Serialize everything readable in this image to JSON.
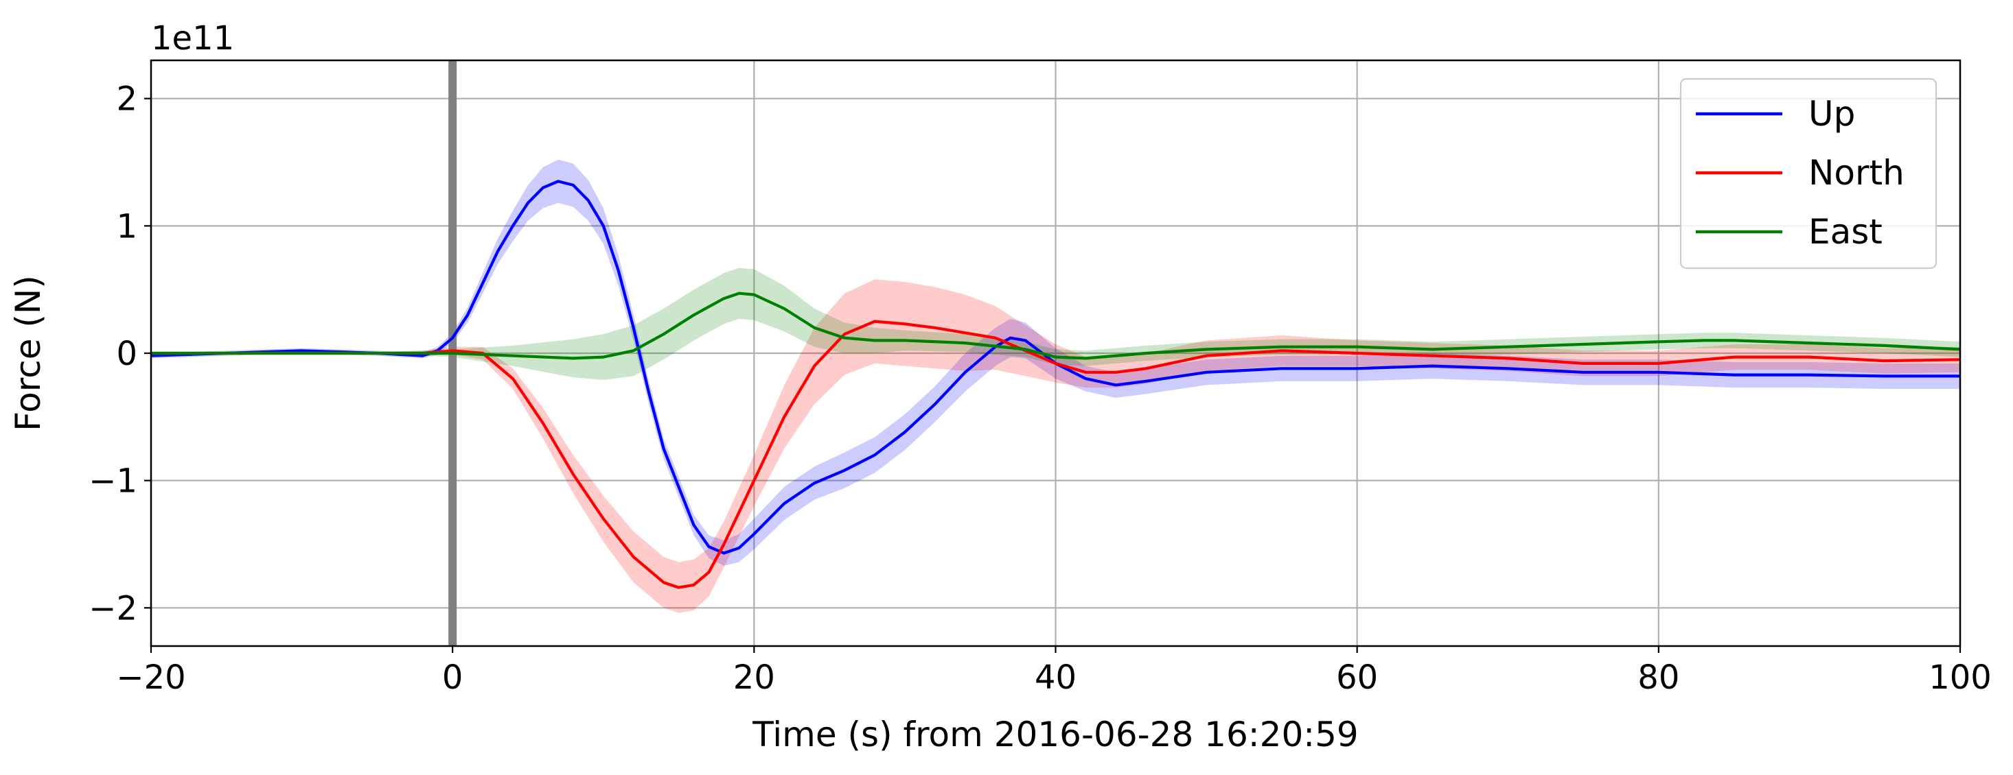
{
  "chart_data": {
    "type": "line",
    "xlabel": "Time (s) from 2016-06-28 16:20:59",
    "ylabel": "Force (N)",
    "y_offset_label": "1e11",
    "y_scale_factor": 100000000000.0,
    "xlim": [
      -20,
      100
    ],
    "ylim": [
      -2.3,
      2.3
    ],
    "x_ticks": [
      -20,
      0,
      20,
      40,
      60,
      80,
      100
    ],
    "x_tick_labels": [
      "−20",
      "0",
      "20",
      "40",
      "60",
      "80",
      "100"
    ],
    "y_ticks": [
      -2,
      -1,
      0,
      1,
      2
    ],
    "y_tick_labels": [
      "−2",
      "−1",
      "0",
      "1",
      "2"
    ],
    "grid": true,
    "legend_position": "top-right",
    "event_marker": {
      "x": 0,
      "color": "#808080"
    },
    "series": [
      {
        "name": "Up",
        "color": "#0000ff",
        "band_color": "#0000ff",
        "x": [
          -20,
          -15,
          -10,
          -5,
          -2,
          -1,
          0,
          1,
          2,
          3,
          4,
          5,
          6,
          7,
          8,
          9,
          10,
          11,
          12,
          13,
          14,
          15,
          16,
          17,
          18,
          19,
          20,
          22,
          24,
          26,
          28,
          30,
          32,
          34,
          36,
          37,
          38,
          40,
          42,
          44,
          46,
          50,
          55,
          60,
          65,
          70,
          75,
          80,
          85,
          90,
          95,
          100
        ],
        "y": [
          -0.02,
          0.0,
          0.02,
          0.0,
          -0.02,
          0.02,
          0.12,
          0.3,
          0.55,
          0.8,
          1.0,
          1.18,
          1.3,
          1.35,
          1.32,
          1.2,
          1.0,
          0.65,
          0.2,
          -0.3,
          -0.75,
          -1.05,
          -1.35,
          -1.52,
          -1.57,
          -1.53,
          -1.42,
          -1.18,
          -1.02,
          -0.92,
          -0.8,
          -0.62,
          -0.4,
          -0.15,
          0.05,
          0.12,
          0.1,
          -0.08,
          -0.2,
          -0.25,
          -0.22,
          -0.15,
          -0.12,
          -0.12,
          -0.1,
          -0.12,
          -0.15,
          -0.15,
          -0.17,
          -0.17,
          -0.18,
          -0.18
        ],
        "band": [
          0.02,
          0.02,
          0.02,
          0.02,
          0.02,
          0.03,
          0.04,
          0.06,
          0.08,
          0.1,
          0.12,
          0.14,
          0.16,
          0.17,
          0.17,
          0.16,
          0.14,
          0.12,
          0.1,
          0.09,
          0.08,
          0.08,
          0.08,
          0.09,
          0.1,
          0.11,
          0.12,
          0.13,
          0.13,
          0.14,
          0.14,
          0.14,
          0.14,
          0.15,
          0.15,
          0.15,
          0.14,
          0.12,
          0.1,
          0.1,
          0.1,
          0.1,
          0.1,
          0.1,
          0.1,
          0.1,
          0.1,
          0.1,
          0.1,
          0.1,
          0.1,
          0.1
        ]
      },
      {
        "name": "North",
        "color": "#ff0000",
        "band_color": "#ff0000",
        "x": [
          -20,
          -15,
          -10,
          -5,
          -2,
          0,
          2,
          4,
          6,
          8,
          10,
          12,
          14,
          15,
          16,
          17,
          18,
          20,
          22,
          24,
          26,
          28,
          30,
          32,
          34,
          36,
          38,
          40,
          42,
          44,
          46,
          50,
          55,
          60,
          65,
          70,
          75,
          80,
          85,
          90,
          95,
          100
        ],
        "y": [
          0.0,
          0.0,
          0.0,
          0.0,
          0.0,
          0.02,
          0.0,
          -0.2,
          -0.55,
          -0.95,
          -1.3,
          -1.6,
          -1.8,
          -1.84,
          -1.82,
          -1.72,
          -1.5,
          -1.0,
          -0.5,
          -0.1,
          0.15,
          0.25,
          0.23,
          0.2,
          0.16,
          0.12,
          0.02,
          -0.08,
          -0.15,
          -0.15,
          -0.12,
          -0.02,
          0.02,
          0.0,
          -0.02,
          -0.04,
          -0.08,
          -0.08,
          -0.03,
          -0.03,
          -0.06,
          -0.05
        ],
        "band": [
          0.01,
          0.01,
          0.01,
          0.01,
          0.02,
          0.03,
          0.05,
          0.08,
          0.12,
          0.15,
          0.18,
          0.2,
          0.2,
          0.2,
          0.2,
          0.19,
          0.18,
          0.2,
          0.25,
          0.3,
          0.32,
          0.33,
          0.33,
          0.32,
          0.3,
          0.25,
          0.2,
          0.15,
          0.12,
          0.12,
          0.12,
          0.12,
          0.12,
          0.1,
          0.1,
          0.1,
          0.1,
          0.1,
          0.1,
          0.1,
          0.1,
          0.1
        ]
      },
      {
        "name": "East",
        "color": "#008000",
        "band_color": "#008000",
        "x": [
          -20,
          -15,
          -10,
          -5,
          -2,
          0,
          4,
          8,
          10,
          12,
          14,
          16,
          18,
          19,
          20,
          22,
          24,
          26,
          28,
          30,
          34,
          38,
          40,
          42,
          46,
          50,
          55,
          60,
          65,
          70,
          75,
          80,
          83,
          85,
          90,
          95,
          100
        ],
        "y": [
          0.0,
          0.0,
          0.0,
          0.0,
          0.0,
          0.0,
          -0.02,
          -0.04,
          -0.03,
          0.02,
          0.15,
          0.3,
          0.43,
          0.47,
          0.46,
          0.35,
          0.2,
          0.12,
          0.1,
          0.1,
          0.08,
          0.03,
          -0.03,
          -0.04,
          0.0,
          0.03,
          0.05,
          0.05,
          0.03,
          0.05,
          0.07,
          0.09,
          0.1,
          0.1,
          0.08,
          0.06,
          0.03
        ],
        "band": [
          0.01,
          0.01,
          0.01,
          0.01,
          0.02,
          0.03,
          0.08,
          0.15,
          0.18,
          0.2,
          0.2,
          0.2,
          0.2,
          0.2,
          0.2,
          0.18,
          0.15,
          0.12,
          0.1,
          0.08,
          0.07,
          0.06,
          0.06,
          0.06,
          0.06,
          0.06,
          0.06,
          0.06,
          0.06,
          0.06,
          0.06,
          0.06,
          0.06,
          0.06,
          0.06,
          0.06,
          0.06
        ]
      }
    ]
  }
}
